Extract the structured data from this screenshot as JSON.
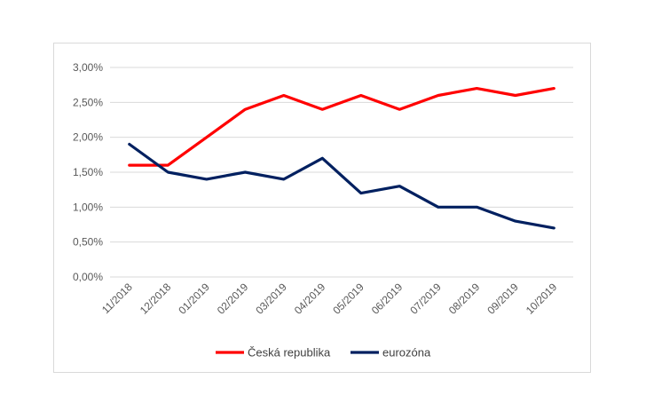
{
  "chart_data": {
    "type": "line",
    "title": "",
    "xlabel": "",
    "ylabel": "",
    "categories": [
      "11/2018",
      "12/2018",
      "01/2019",
      "02/2019",
      "03/2019",
      "04/2019",
      "05/2019",
      "06/2019",
      "07/2019",
      "08/2019",
      "09/2019",
      "10/2019"
    ],
    "ylim": [
      0,
      3.0
    ],
    "yticks": [
      "0,00%",
      "0,50%",
      "1,00%",
      "1,50%",
      "2,00%",
      "2,50%",
      "3,00%"
    ],
    "grid": true,
    "legend_position": "bottom",
    "series": [
      {
        "name": "Česká republika",
        "color": "#ff0000",
        "values": [
          1.6,
          1.6,
          2.0,
          2.4,
          2.6,
          2.4,
          2.6,
          2.4,
          2.6,
          2.7,
          2.6,
          2.7
        ]
      },
      {
        "name": "eurozóna",
        "color": "#002060",
        "values": [
          1.9,
          1.5,
          1.4,
          1.5,
          1.4,
          1.7,
          1.2,
          1.3,
          1.0,
          1.0,
          0.8,
          0.7
        ]
      }
    ]
  }
}
